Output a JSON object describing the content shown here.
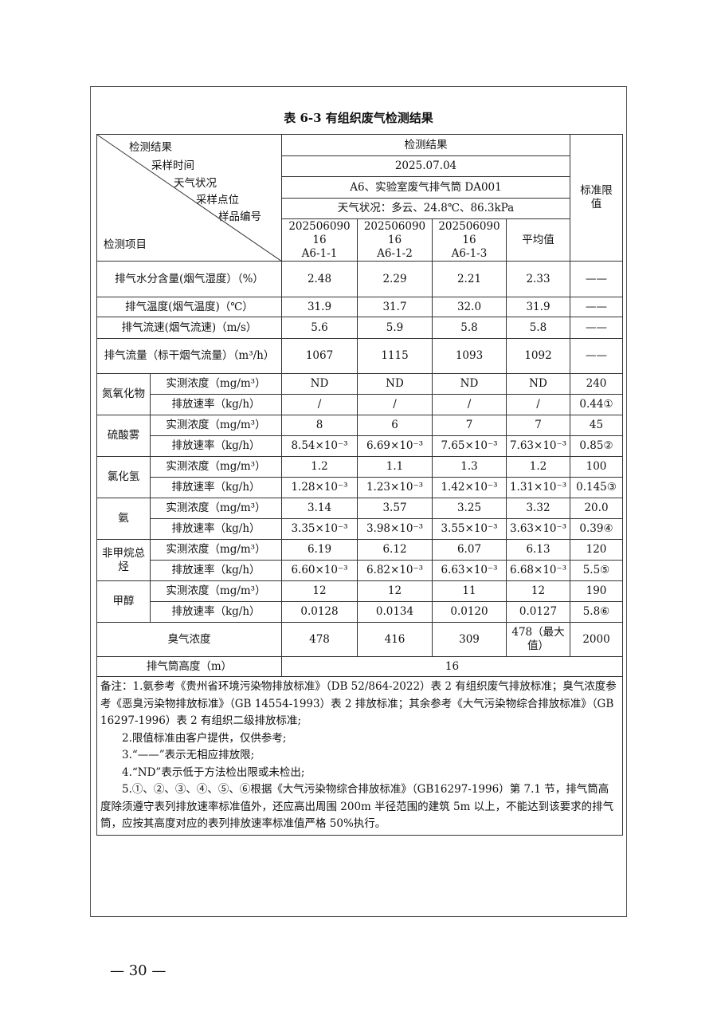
{
  "title": "表 6-3 有组织废气检测结果",
  "header": {
    "diag_labels": [
      "检测结果",
      "采样时间",
      "天气状况",
      "采样点位",
      "样品编号",
      "检测项目"
    ],
    "results": "检测结果",
    "date": "2025.07.04",
    "site": "A6、实验室废气排气筒 DA001",
    "weather": "天气状况：多云、24.8℃、86.3kPa",
    "samples": [
      [
        "202506090",
        "16",
        "A6-1-1"
      ],
      [
        "202506090",
        "16",
        "A6-1-2"
      ],
      [
        "202506090",
        "16",
        "A6-1-3"
      ]
    ],
    "average": "平均值",
    "limit": "标准限值"
  },
  "single_rows": [
    {
      "label": "排气水分含量(烟气湿度）（%）",
      "values": [
        "2.48",
        "2.29",
        "2.21",
        "2.33",
        "——"
      ]
    },
    {
      "label": "排气温度(烟气温度)（℃）",
      "values": [
        "31.9",
        "31.7",
        "32.0",
        "31.9",
        "——"
      ]
    },
    {
      "label": "排气流速(烟气流速)（m/s）",
      "values": [
        "5.6",
        "5.9",
        "5.8",
        "5.8",
        "——"
      ]
    },
    {
      "label": "排气流量（标干烟气流量）（m³/h）",
      "values": [
        "1067",
        "1115",
        "1093",
        "1092",
        "——"
      ]
    }
  ],
  "groups": [
    {
      "name": "氮氧化物",
      "rows": [
        {
          "label": "实测浓度（mg/m³）",
          "values": [
            "ND",
            "ND",
            "ND",
            "ND",
            "240"
          ]
        },
        {
          "label": "排放速率（kg/h）",
          "values": [
            "/",
            "/",
            "/",
            "/",
            "0.44①"
          ]
        }
      ]
    },
    {
      "name": "硫酸雾",
      "rows": [
        {
          "label": "实测浓度（mg/m³）",
          "values": [
            "8",
            "6",
            "7",
            "7",
            "45"
          ]
        },
        {
          "label": "排放速率（kg/h）",
          "values": [
            "8.54×10⁻³",
            "6.69×10⁻³",
            "7.65×10⁻³",
            "7.63×10⁻³",
            "0.85②"
          ]
        }
      ]
    },
    {
      "name": "氯化氢",
      "rows": [
        {
          "label": "实测浓度（mg/m³）",
          "values": [
            "1.2",
            "1.1",
            "1.3",
            "1.2",
            "100"
          ]
        },
        {
          "label": "排放速率（kg/h）",
          "values": [
            "1.28×10⁻³",
            "1.23×10⁻³",
            "1.42×10⁻³",
            "1.31×10⁻³",
            "0.145③"
          ]
        }
      ]
    },
    {
      "name": "氨",
      "rows": [
        {
          "label": "实测浓度（mg/m³）",
          "values": [
            "3.14",
            "3.57",
            "3.25",
            "3.32",
            "20.0"
          ]
        },
        {
          "label": "排放速率（kg/h）",
          "values": [
            "3.35×10⁻³",
            "3.98×10⁻³",
            "3.55×10⁻³",
            "3.63×10⁻³",
            "0.39④"
          ]
        }
      ]
    },
    {
      "name": "非甲烷总烃",
      "rows": [
        {
          "label": "实测浓度（mg/m³）",
          "values": [
            "6.19",
            "6.12",
            "6.07",
            "6.13",
            "120"
          ]
        },
        {
          "label": "排放速率（kg/h）",
          "values": [
            "6.60×10⁻³",
            "6.82×10⁻³",
            "6.63×10⁻³",
            "6.68×10⁻³",
            "5.5⑤"
          ]
        }
      ]
    },
    {
      "name": "甲醇",
      "rows": [
        {
          "label": "实测浓度（mg/m³）",
          "values": [
            "12",
            "12",
            "11",
            "12",
            "190"
          ]
        },
        {
          "label": "排放速率（kg/h）",
          "values": [
            "0.0128",
            "0.0134",
            "0.0120",
            "0.0127",
            "5.8⑥"
          ]
        }
      ]
    }
  ],
  "odor": {
    "label": "臭气浓度",
    "values": [
      "478",
      "416",
      "309",
      "478（最大值）",
      "2000"
    ]
  },
  "stack_height": {
    "label": "排气筒高度（m）",
    "value": "16"
  },
  "notes": [
    "备注：1.氨参考《贵州省环境污染物排放标准》（DB 52/864-2022）表 2 有组织废气排放标准；臭气浓度参考《恶臭污染物排放标准》（GB 14554-1993）表 2 排放标准；其余参考《大气污染物综合排放标准》（GB 16297-1996）表 2 有组织二级排放标准;",
    "2.限值标准由客户提供，仅供参考;",
    "3.“——”表示无相应排放限;",
    "4.“ND”表示低于方法检出限或未检出;",
    "5.①、②、③、④、⑤、⑥根据《大气污染物综合排放标准》（GB16297-1996）第 7.1 节，排气筒高度除须遵守表列排放速率标准值外，还应高出周围 200m 半径范围的建筑 5m 以上，不能达到该要求的排气筒，应按其高度对应的表列排放速率标准值严格 50%执行。"
  ],
  "page_number": "— 30 —"
}
